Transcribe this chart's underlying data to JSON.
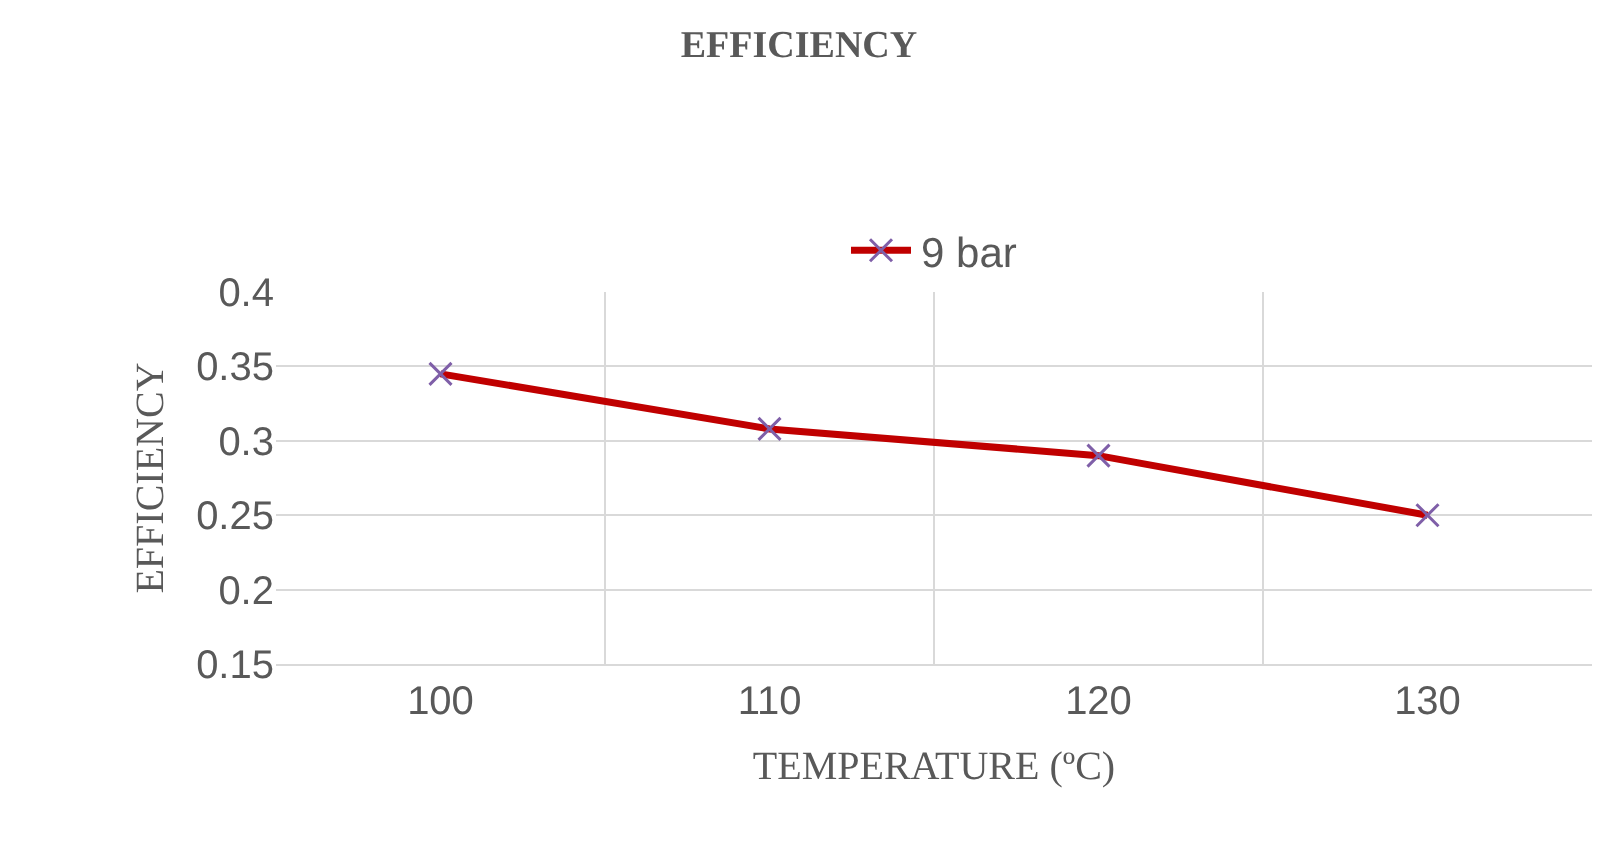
{
  "chart_data": {
    "type": "line",
    "title": "EFFICIENCY",
    "xlabel": "TEMPERATURE (ºC)",
    "ylabel": "EFFICIENCY",
    "categories": [
      "100",
      "110",
      "120",
      "130"
    ],
    "series": [
      {
        "name": "9 bar",
        "color": "#c00000",
        "values": [
          0.345,
          0.308,
          0.29,
          0.25
        ]
      }
    ],
    "ylim": [
      0.15,
      0.4
    ],
    "yticks": [
      0.15,
      0.2,
      0.25,
      0.3,
      0.35,
      0.4
    ],
    "grid": true,
    "legend": "top",
    "marker": "cross",
    "line_style": "solid"
  }
}
